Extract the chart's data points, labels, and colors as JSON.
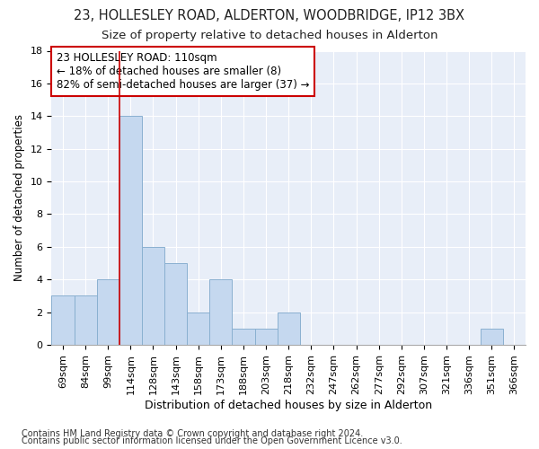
{
  "title1": "23, HOLLESLEY ROAD, ALDERTON, WOODBRIDGE, IP12 3BX",
  "title2": "Size of property relative to detached houses in Alderton",
  "xlabel": "Distribution of detached houses by size in Alderton",
  "ylabel": "Number of detached properties",
  "footnote1": "Contains HM Land Registry data © Crown copyright and database right 2024.",
  "footnote2": "Contains public sector information licensed under the Open Government Licence v3.0.",
  "annotation_line1": "23 HOLLESLEY ROAD: 110sqm",
  "annotation_line2": "← 18% of detached houses are smaller (8)",
  "annotation_line3": "82% of semi-detached houses are larger (37) →",
  "bar_categories": [
    "69sqm",
    "84sqm",
    "99sqm",
    "114sqm",
    "128sqm",
    "143sqm",
    "158sqm",
    "173sqm",
    "188sqm",
    "203sqm",
    "218sqm",
    "232sqm",
    "247sqm",
    "262sqm",
    "277sqm",
    "292sqm",
    "307sqm",
    "321sqm",
    "336sqm",
    "351sqm",
    "366sqm"
  ],
  "bar_values": [
    3,
    3,
    4,
    14,
    6,
    5,
    2,
    4,
    1,
    1,
    2,
    0,
    0,
    0,
    0,
    0,
    0,
    0,
    0,
    1,
    0
  ],
  "bar_color": "#c5d8ef",
  "bar_edge_color": "#8ab0d0",
  "vline_x": 2.5,
  "vline_color": "#cc0000",
  "ylim": [
    0,
    18
  ],
  "yticks": [
    0,
    2,
    4,
    6,
    8,
    10,
    12,
    14,
    16,
    18
  ],
  "bg_color": "#e8eef8",
  "grid_color": "#ffffff",
  "annotation_box_facecolor": "#ffffff",
  "annotation_border_color": "#cc0000",
  "title1_fontsize": 10.5,
  "title2_fontsize": 9.5,
  "xlabel_fontsize": 9,
  "ylabel_fontsize": 8.5,
  "tick_fontsize": 8,
  "annot_fontsize": 8.5,
  "footnote_fontsize": 7
}
